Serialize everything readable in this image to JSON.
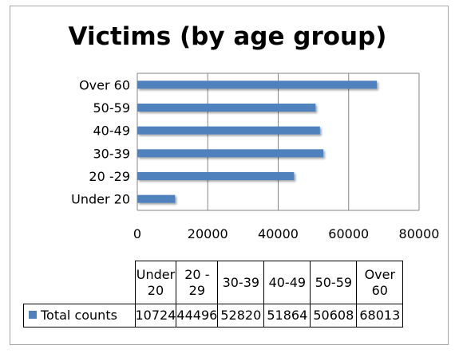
{
  "chart_data": {
    "type": "bar",
    "orientation": "horizontal",
    "title": "Victims (by age group)",
    "categories": [
      "Under 20",
      "20 -29",
      "30-39",
      "40-49",
      "50-59",
      "Over 60"
    ],
    "table_headers": [
      "Under 20",
      "20 - 29",
      "30-39",
      "40-49",
      "50-59",
      "Over 60"
    ],
    "series": [
      {
        "name": "Total counts",
        "values": [
          10724,
          44496,
          52820,
          51864,
          50608,
          68013
        ],
        "color": "#4f81bd"
      }
    ],
    "xlim": [
      0,
      80000
    ],
    "x_ticks": [
      "0",
      "20000",
      "40000",
      "60000",
      "80000"
    ],
    "grid": "vertical",
    "legend": "data-table"
  }
}
